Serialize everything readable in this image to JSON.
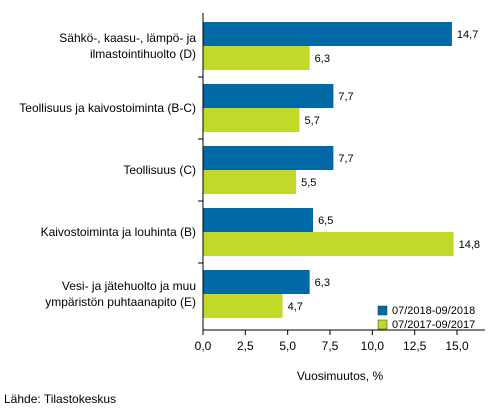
{
  "chart_data": {
    "type": "bar",
    "orientation": "horizontal",
    "categories": [
      [
        "Sähkö-, kaasu-, lämpö- ja",
        "ilmastointihuolto (D)"
      ],
      [
        "Teollisuus ja kaivostoiminta (B-C)"
      ],
      [
        "Teollisuus (C)"
      ],
      [
        "Kaivostoiminta ja louhinta (B)"
      ],
      [
        "Vesi- ja jätehuolto ja muu",
        "ympäristön puhtaanapito (E)"
      ]
    ],
    "series": [
      {
        "name": "07/2018-09/2018",
        "color": "#0069a6",
        "values": [
          14.7,
          7.7,
          7.7,
          6.5,
          6.3
        ],
        "labels": [
          "14,7",
          "7,7",
          "7,7",
          "6,5",
          "6,3"
        ]
      },
      {
        "name": "07/2017-09/2017",
        "color": "#c3d92a",
        "values": [
          6.3,
          5.7,
          5.5,
          14.8,
          4.7
        ],
        "labels": [
          "6,3",
          "5,7",
          "5,5",
          "14,8",
          "4,7"
        ]
      }
    ],
    "xlim": [
      0,
      16.5
    ],
    "xticks": [
      0,
      2.5,
      5,
      7.5,
      10,
      12.5,
      15
    ],
    "xtick_labels": [
      "0,0",
      "2,5",
      "5,0",
      "7,5",
      "10,0",
      "12,5",
      "15,0"
    ],
    "xlabel": "Vuosimuutos, %",
    "legend_position": "bottom-right",
    "grid": false
  },
  "source_text": "Lähde: Tilastokeskus"
}
